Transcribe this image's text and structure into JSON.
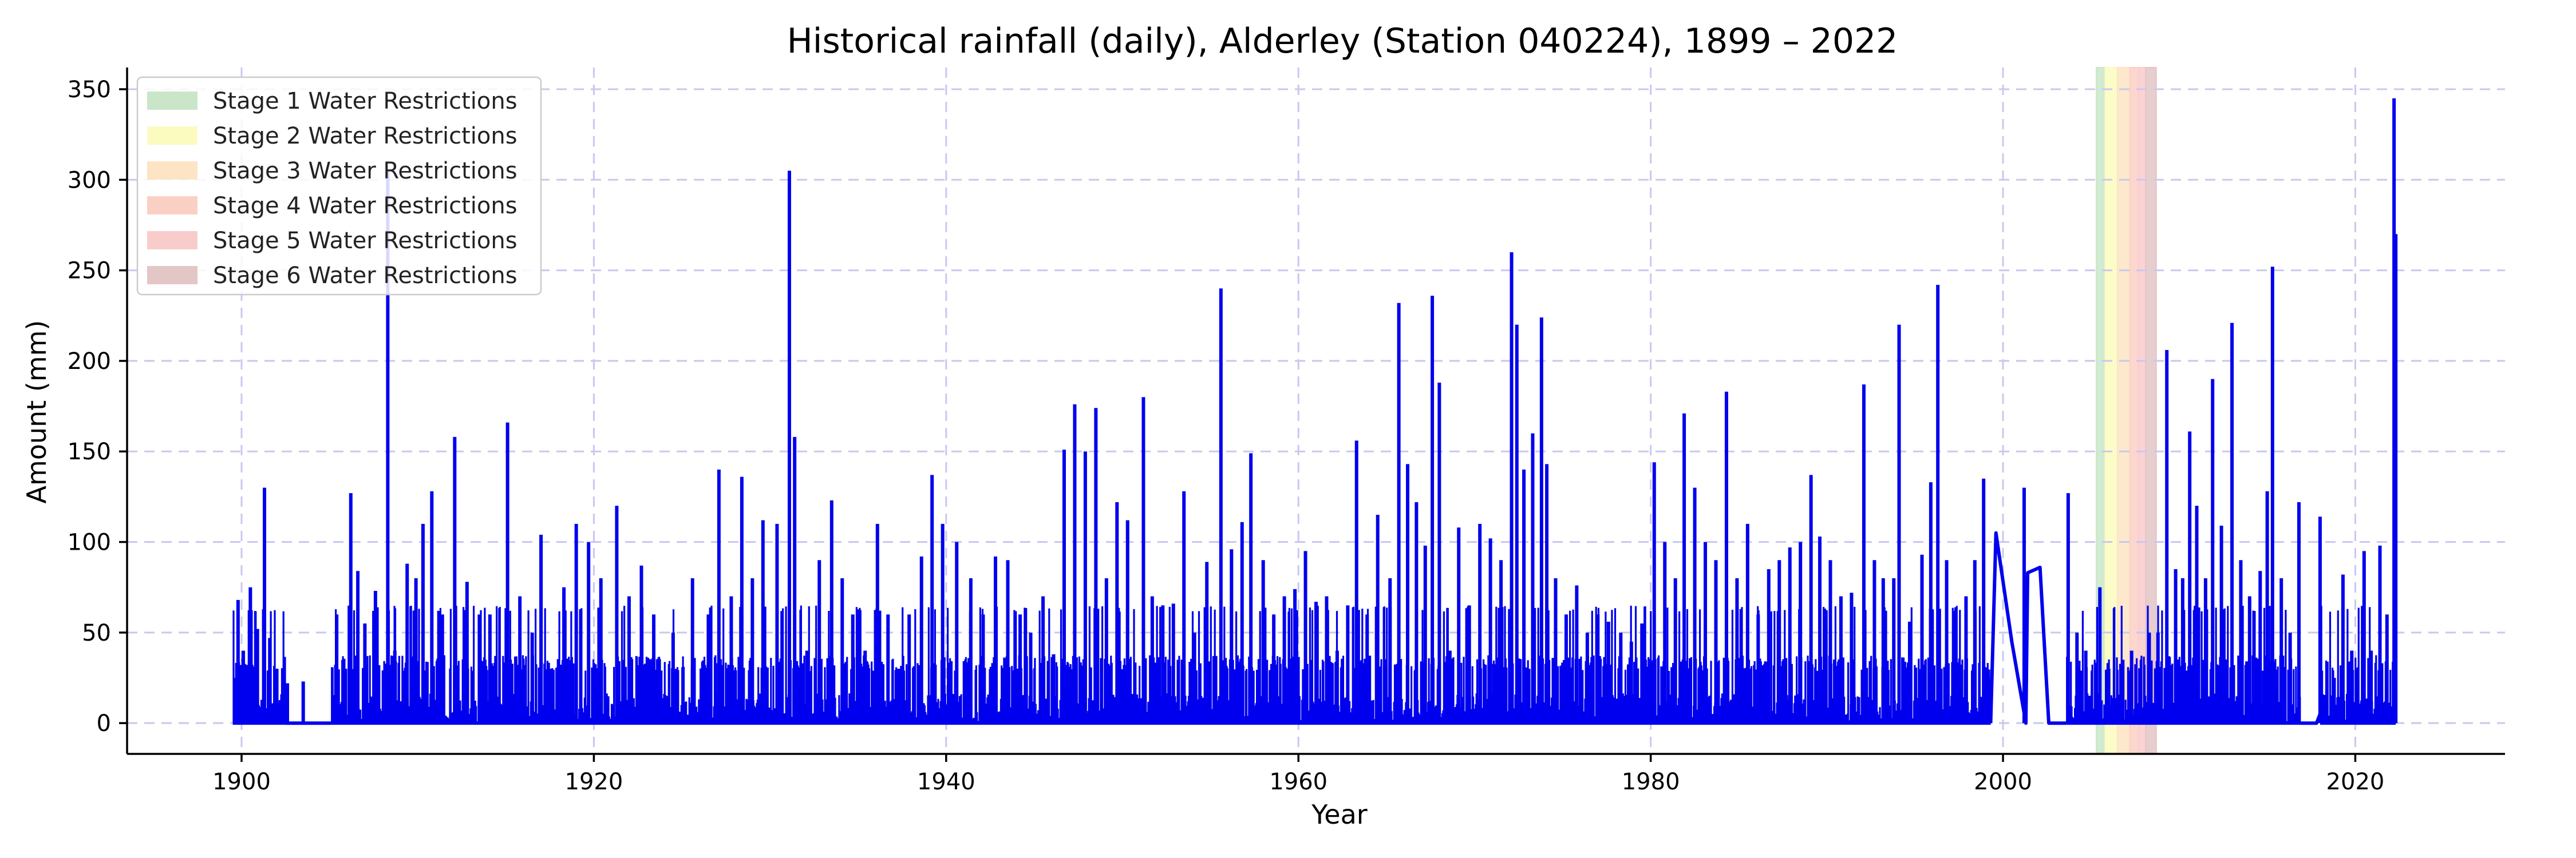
{
  "chart_data": {
    "type": "line",
    "title": "Historical rainfall (daily), Alderley (Station 040224), 1899 – 2022",
    "xlabel": "Year",
    "ylabel": "Amount (mm)",
    "xlim": [
      1893.5,
      2028.5
    ],
    "ylim": [
      -17,
      362
    ],
    "x_ticks": [
      1900,
      1920,
      1940,
      1960,
      1980,
      2000,
      2020
    ],
    "y_ticks": [
      0,
      50,
      100,
      150,
      200,
      250,
      300,
      350
    ],
    "grid": true,
    "legend_position": "top-left",
    "series": [
      {
        "color": "#0000ee",
        "peaks": [
          [
            1899.6,
            25
          ],
          [
            1899.8,
            68
          ],
          [
            1900.1,
            40
          ],
          [
            1900.5,
            75
          ],
          [
            1900.9,
            52
          ],
          [
            1901.3,
            130
          ],
          [
            1901.6,
            47
          ],
          [
            1902.0,
            30
          ],
          [
            1902.6,
            22
          ],
          [
            1903.5,
            23
          ],
          [
            1905.4,
            60
          ],
          [
            1905.9,
            30
          ],
          [
            1906.2,
            127
          ],
          [
            1906.6,
            84
          ],
          [
            1907.0,
            55
          ],
          [
            1907.6,
            73
          ],
          [
            1908.3,
            305
          ],
          [
            1908.7,
            40
          ],
          [
            1909.4,
            88
          ],
          [
            1909.9,
            80
          ],
          [
            1910.3,
            110
          ],
          [
            1910.8,
            128
          ],
          [
            1911.4,
            60
          ],
          [
            1912.1,
            158
          ],
          [
            1912.8,
            78
          ],
          [
            1913.5,
            60
          ],
          [
            1914.1,
            60
          ],
          [
            1915.1,
            166
          ],
          [
            1915.8,
            70
          ],
          [
            1916.5,
            50
          ],
          [
            1917.0,
            104
          ],
          [
            1917.6,
            30
          ],
          [
            1918.3,
            75
          ],
          [
            1919.0,
            110
          ],
          [
            1919.7,
            100
          ],
          [
            1920.4,
            80
          ],
          [
            1921.3,
            120
          ],
          [
            1922.0,
            70
          ],
          [
            1922.7,
            87
          ],
          [
            1923.4,
            60
          ],
          [
            1924.5,
            50
          ],
          [
            1925.6,
            80
          ],
          [
            1926.5,
            60
          ],
          [
            1927.1,
            140
          ],
          [
            1927.8,
            70
          ],
          [
            1928.4,
            136
          ],
          [
            1929.0,
            80
          ],
          [
            1929.6,
            112
          ],
          [
            1930.4,
            110
          ],
          [
            1931.1,
            305
          ],
          [
            1931.4,
            158
          ],
          [
            1932.1,
            40
          ],
          [
            1932.8,
            90
          ],
          [
            1933.5,
            123
          ],
          [
            1934.1,
            80
          ],
          [
            1934.7,
            60
          ],
          [
            1935.4,
            40
          ],
          [
            1936.1,
            110
          ],
          [
            1936.7,
            60
          ],
          [
            1937.3,
            30
          ],
          [
            1937.9,
            60
          ],
          [
            1938.6,
            92
          ],
          [
            1939.2,
            137
          ],
          [
            1939.8,
            110
          ],
          [
            1940.6,
            100
          ],
          [
            1941.4,
            80
          ],
          [
            1942.1,
            60
          ],
          [
            1942.8,
            92
          ],
          [
            1943.5,
            90
          ],
          [
            1944.2,
            60
          ],
          [
            1944.8,
            50
          ],
          [
            1945.5,
            70
          ],
          [
            1946.1,
            38
          ],
          [
            1946.7,
            151
          ],
          [
            1947.3,
            176
          ],
          [
            1947.9,
            150
          ],
          [
            1948.5,
            174
          ],
          [
            1949.1,
            80
          ],
          [
            1949.7,
            122
          ],
          [
            1950.3,
            112
          ],
          [
            1951.2,
            180
          ],
          [
            1951.7,
            70
          ],
          [
            1952.3,
            65
          ],
          [
            1952.9,
            66
          ],
          [
            1953.5,
            128
          ],
          [
            1954.1,
            50
          ],
          [
            1954.8,
            89
          ],
          [
            1955.6,
            240
          ],
          [
            1956.2,
            96
          ],
          [
            1956.8,
            111
          ],
          [
            1957.3,
            149
          ],
          [
            1958.0,
            90
          ],
          [
            1958.6,
            60
          ],
          [
            1959.2,
            70
          ],
          [
            1959.8,
            74
          ],
          [
            1960.4,
            95
          ],
          [
            1961.0,
            67
          ],
          [
            1961.6,
            70
          ],
          [
            1962.2,
            40
          ],
          [
            1962.8,
            65
          ],
          [
            1963.3,
            156
          ],
          [
            1963.9,
            60
          ],
          [
            1964.5,
            115
          ],
          [
            1965.2,
            80
          ],
          [
            1965.7,
            232
          ],
          [
            1966.2,
            143
          ],
          [
            1966.7,
            122
          ],
          [
            1967.2,
            98
          ],
          [
            1967.6,
            236
          ],
          [
            1968.0,
            188
          ],
          [
            1968.6,
            40
          ],
          [
            1969.1,
            108
          ],
          [
            1969.7,
            65
          ],
          [
            1970.3,
            110
          ],
          [
            1970.9,
            102
          ],
          [
            1971.5,
            90
          ],
          [
            1972.1,
            260
          ],
          [
            1972.4,
            220
          ],
          [
            1972.8,
            140
          ],
          [
            1973.3,
            160
          ],
          [
            1973.8,
            224
          ],
          [
            1974.1,
            143
          ],
          [
            1974.6,
            80
          ],
          [
            1975.2,
            60
          ],
          [
            1975.8,
            76
          ],
          [
            1976.4,
            50
          ],
          [
            1977.0,
            60
          ],
          [
            1977.6,
            56
          ],
          [
            1978.3,
            50
          ],
          [
            1978.9,
            45
          ],
          [
            1979.5,
            55
          ],
          [
            1980.2,
            144
          ],
          [
            1980.8,
            100
          ],
          [
            1981.4,
            80
          ],
          [
            1981.9,
            171
          ],
          [
            1982.5,
            130
          ],
          [
            1983.1,
            100
          ],
          [
            1983.7,
            90
          ],
          [
            1984.3,
            183
          ],
          [
            1984.9,
            80
          ],
          [
            1985.5,
            110
          ],
          [
            1986.1,
            60
          ],
          [
            1986.7,
            85
          ],
          [
            1987.3,
            90
          ],
          [
            1987.9,
            97
          ],
          [
            1988.5,
            100
          ],
          [
            1989.1,
            137
          ],
          [
            1989.6,
            103
          ],
          [
            1990.2,
            90
          ],
          [
            1990.8,
            70
          ],
          [
            1991.4,
            72
          ],
          [
            1992.1,
            187
          ],
          [
            1992.7,
            90
          ],
          [
            1993.2,
            80
          ],
          [
            1993.8,
            80
          ],
          [
            1994.1,
            220
          ],
          [
            1994.7,
            56
          ],
          [
            1995.4,
            93
          ],
          [
            1995.9,
            133
          ],
          [
            1996.3,
            242
          ],
          [
            1996.8,
            90
          ],
          [
            1997.3,
            60
          ],
          [
            1997.9,
            70
          ],
          [
            1998.4,
            90
          ],
          [
            1998.9,
            135
          ],
          [
            2001.2,
            130
          ],
          [
            2003.7,
            127
          ],
          [
            2004.2,
            50
          ],
          [
            2004.7,
            40
          ],
          [
            2005.5,
            75
          ],
          [
            2006.0,
            30
          ],
          [
            2006.8,
            35
          ],
          [
            2007.3,
            40
          ],
          [
            2007.8,
            30
          ],
          [
            2008.3,
            50
          ],
          [
            2008.8,
            50
          ],
          [
            2009.3,
            206
          ],
          [
            2009.8,
            85
          ],
          [
            2010.2,
            80
          ],
          [
            2010.6,
            161
          ],
          [
            2011.0,
            120
          ],
          [
            2011.5,
            80
          ],
          [
            2011.9,
            190
          ],
          [
            2012.4,
            109
          ],
          [
            2013.0,
            221
          ],
          [
            2013.5,
            90
          ],
          [
            2014.0,
            70
          ],
          [
            2014.6,
            84
          ],
          [
            2015.0,
            128
          ],
          [
            2015.3,
            252
          ],
          [
            2015.8,
            80
          ],
          [
            2016.3,
            50
          ],
          [
            2016.8,
            122
          ],
          [
            2018.0,
            114
          ],
          [
            2018.8,
            25
          ],
          [
            2019.3,
            82
          ],
          [
            2019.8,
            40
          ],
          [
            2020.5,
            95
          ],
          [
            2020.9,
            40
          ],
          [
            2021.4,
            98
          ],
          [
            2021.8,
            60
          ],
          [
            2022.2,
            345
          ],
          [
            2022.3,
            270
          ]
        ],
        "gap_segments": [
          [
            [
              1902.5,
              0
            ],
            [
              1903.0,
              0
            ],
            [
              1905.1,
              0
            ]
          ],
          [
            [
              1999.3,
              0
            ],
            [
              1999.6,
              105
            ],
            [
              2000.5,
              45
            ],
            [
              2001.3,
              0
            ],
            [
              2001.4,
              83
            ],
            [
              2002.1,
              86
            ],
            [
              2002.6,
              0
            ],
            [
              2003.6,
              0
            ]
          ],
          [
            [
              2016.9,
              0
            ],
            [
              2017.8,
              0
            ],
            [
              2018.0,
              5
            ]
          ]
        ]
      }
    ],
    "bands": [
      {
        "label": "Stage 1 Water Restrictions",
        "start": 2005.3,
        "end": 2005.8,
        "color": "#c9e6c9"
      },
      {
        "label": "Stage 2 Water Restrictions",
        "start": 2005.8,
        "end": 2006.5,
        "color": "#fbfbc0"
      },
      {
        "label": "Stage 3 Water Restrictions",
        "start": 2006.5,
        "end": 2007.2,
        "color": "#fde4c4"
      },
      {
        "label": "Stage 4 Water Restrictions",
        "start": 2007.2,
        "end": 2007.7,
        "color": "#fbd0c4"
      },
      {
        "label": "Stage 5 Water Restrictions",
        "start": 2007.7,
        "end": 2008.1,
        "color": "#f9cccc"
      },
      {
        "label": "Stage 6 Water Restrictions",
        "start": 2008.1,
        "end": 2008.7,
        "color": "#e3c6c6"
      }
    ]
  }
}
